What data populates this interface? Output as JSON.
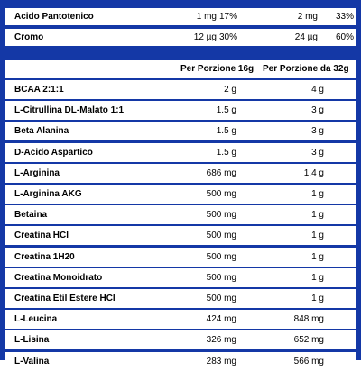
{
  "top_rows": [
    {
      "name": "Acido Pantotenico",
      "q16": "1 mg",
      "dv16": "17%",
      "q32": "2 mg",
      "dv32": "33%"
    },
    {
      "name": "Cromo",
      "q16": "12 µg",
      "dv16": "30%",
      "q32": "24 µg",
      "dv32": "60%"
    }
  ],
  "header": {
    "per16": "Per Porzione 16g",
    "per32": "Per Porzione da 32g"
  },
  "rows": [
    {
      "name": "BCAA 2:1:1",
      "q16": "2 g",
      "q32": "4 g"
    },
    {
      "name": "L-Citrullina DL-Malato 1:1",
      "q16": "1.5 g",
      "q32": "3 g"
    },
    {
      "name": "Beta Alanina",
      "q16": "1.5 g",
      "q32": "3 g"
    },
    {
      "name": "D-Acido Aspartico",
      "q16": "1.5 g",
      "q32": "3 g"
    },
    {
      "name": "L-Arginina",
      "q16": "686 mg",
      "q32": "1.4 g"
    },
    {
      "name": "L-Arginina AKG",
      "q16": "500 mg",
      "q32": "1 g"
    },
    {
      "name": "Betaina",
      "q16": "500 mg",
      "q32": "1 g"
    },
    {
      "name": "Creatina HCl",
      "q16": "500 mg",
      "q32": "1 g"
    },
    {
      "name": "Creatina 1H20",
      "q16": "500 mg",
      "q32": "1 g"
    },
    {
      "name": "Creatina Monoidrato",
      "q16": "500 mg",
      "q32": "1 g"
    },
    {
      "name": "Creatina Etil Estere HCl",
      "q16": "500 mg",
      "q32": "1 g"
    },
    {
      "name": "L-Leucina",
      "q16": "424 mg",
      "q32": "848 mg"
    },
    {
      "name": "L-Lisina",
      "q16": "326 mg",
      "q32": "652 mg"
    },
    {
      "name": "L-Valina",
      "q16": "283 mg",
      "q32": "566 mg"
    }
  ],
  "colors": {
    "border": "#1438a6",
    "row_bg": "#ffffff"
  }
}
